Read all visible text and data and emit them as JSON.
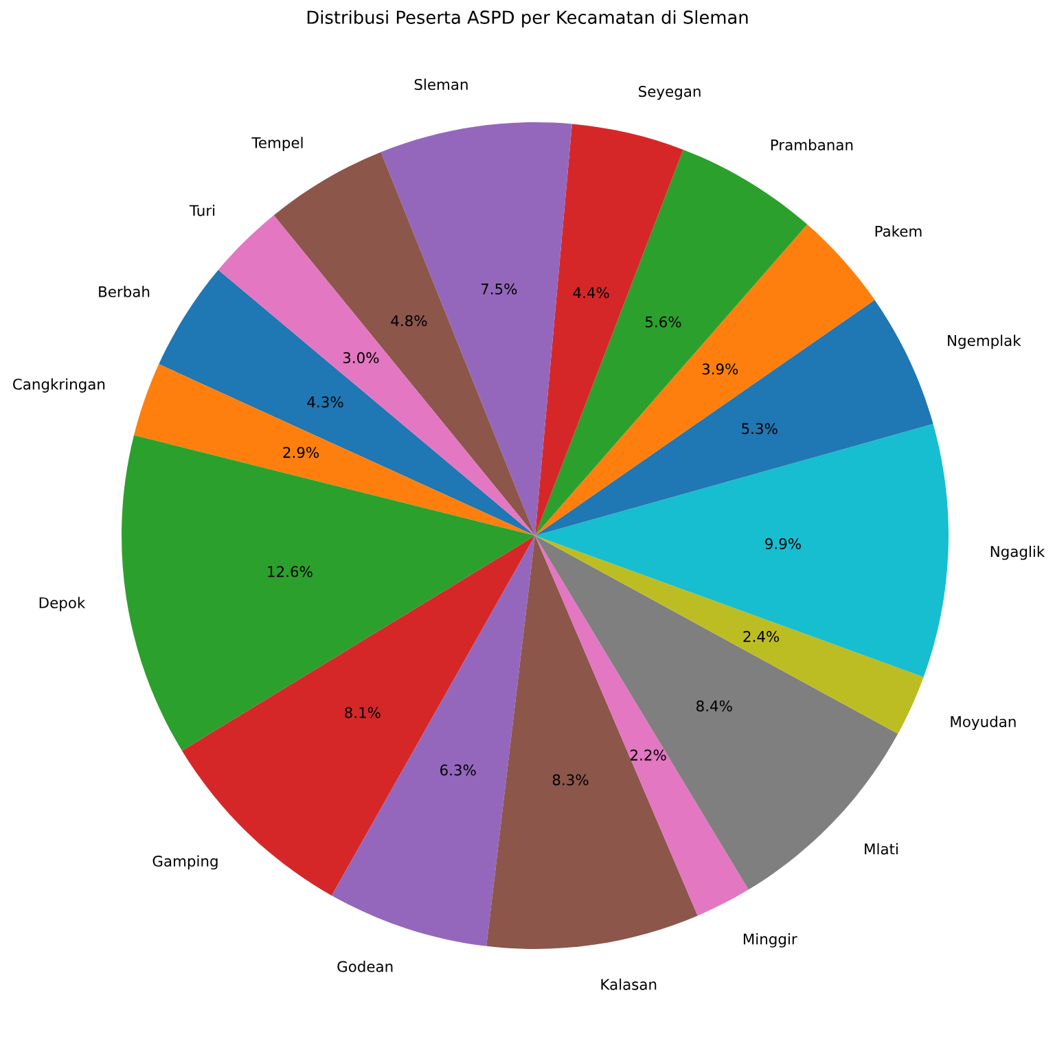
{
  "chart_data": {
    "type": "pie",
    "title": "Distribusi Peserta ASPD per Kecamatan di Sleman",
    "categories": [
      "Berbah",
      "Cangkringan",
      "Depok",
      "Gamping",
      "Godean",
      "Kalasan",
      "Minggir",
      "Mlati",
      "Moyudan",
      "Ngaglik",
      "Ngemplak",
      "Pakem",
      "Prambanan",
      "Seyegan",
      "Sleman",
      "Tempel",
      "Turi"
    ],
    "values": [
      4.3,
      2.9,
      12.6,
      8.1,
      6.3,
      8.3,
      2.2,
      8.4,
      2.4,
      9.9,
      5.3,
      3.9,
      5.6,
      4.4,
      7.5,
      4.8,
      3.0
    ],
    "colors": [
      "#1f77b4",
      "#ff7f0e",
      "#2ca02c",
      "#d62728",
      "#9467bd",
      "#8c564b",
      "#e377c2",
      "#7f7f7f",
      "#bcbd22",
      "#17becf",
      "#1f77b4",
      "#ff7f0e",
      "#2ca02c",
      "#d62728",
      "#9467bd",
      "#8c564b",
      "#e377c2"
    ],
    "value_labels": [
      "4.3%",
      "2.9%",
      "12.6%",
      "8.1%",
      "6.3%",
      "8.3%",
      "2.2%",
      "8.4%",
      "2.4%",
      "9.9%",
      "5.3%",
      "3.9%",
      "5.6%",
      "4.4%",
      "7.5%",
      "4.8%",
      "3.0%"
    ]
  }
}
